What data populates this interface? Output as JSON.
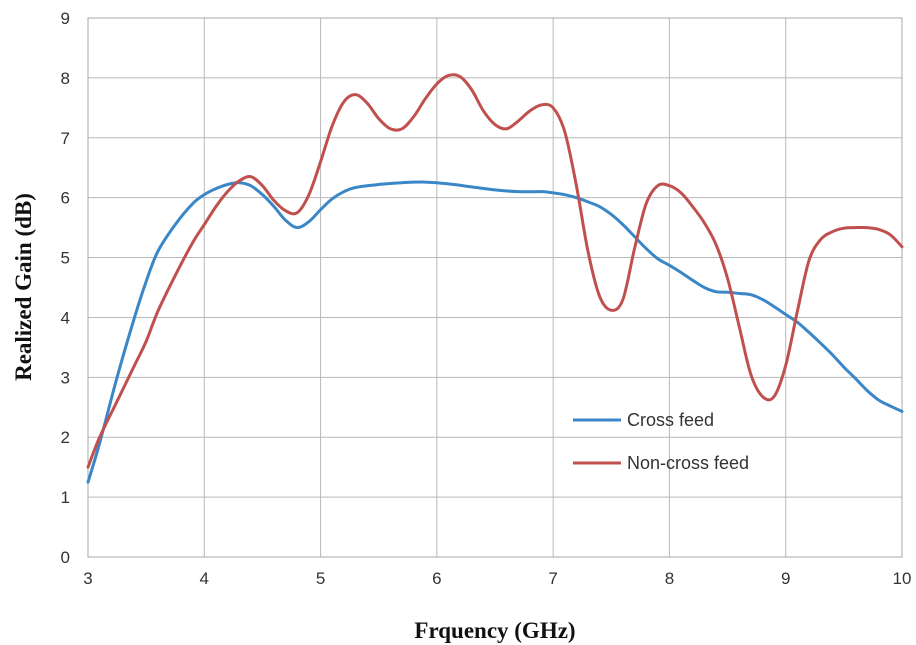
{
  "chart_data": {
    "type": "line",
    "xlabel": "Frquency (GHz)",
    "ylabel": "Realized Gain (dB)",
    "xlim": [
      3,
      10
    ],
    "ylim": [
      0,
      9
    ],
    "xticks": [
      "3",
      "4",
      "5",
      "6",
      "7",
      "8",
      "9",
      "10"
    ],
    "yticks": [
      "0",
      "1",
      "2",
      "3",
      "4",
      "5",
      "6",
      "7",
      "8",
      "9"
    ],
    "grid": true,
    "legend_position": "lower-right",
    "series": [
      {
        "name": "Cross feed",
        "color": "#3a87c8",
        "x": [
          3.0,
          3.1,
          3.25,
          3.4,
          3.5,
          3.6,
          3.75,
          3.9,
          4.0,
          4.1,
          4.2,
          4.3,
          4.4,
          4.5,
          4.6,
          4.7,
          4.8,
          4.9,
          5.0,
          5.1,
          5.2,
          5.3,
          5.5,
          5.7,
          5.9,
          6.1,
          6.3,
          6.5,
          6.7,
          6.9,
          7.0,
          7.1,
          7.2,
          7.3,
          7.4,
          7.5,
          7.6,
          7.7,
          7.8,
          7.9,
          8.0,
          8.1,
          8.2,
          8.3,
          8.4,
          8.5,
          8.6,
          8.7,
          8.8,
          8.9,
          9.0,
          9.1,
          9.2,
          9.3,
          9.4,
          9.5,
          9.6,
          9.7,
          9.8,
          9.9,
          10.0
        ],
        "values": [
          1.25,
          1.9,
          3.0,
          4.0,
          4.6,
          5.1,
          5.55,
          5.9,
          6.05,
          6.15,
          6.22,
          6.25,
          6.2,
          6.05,
          5.85,
          5.62,
          5.5,
          5.6,
          5.8,
          5.98,
          6.1,
          6.17,
          6.22,
          6.25,
          6.26,
          6.23,
          6.18,
          6.13,
          6.1,
          6.1,
          6.08,
          6.05,
          6.0,
          5.93,
          5.85,
          5.72,
          5.55,
          5.35,
          5.15,
          4.98,
          4.87,
          4.75,
          4.62,
          4.5,
          4.43,
          4.42,
          4.4,
          4.38,
          4.3,
          4.18,
          4.05,
          3.92,
          3.75,
          3.57,
          3.38,
          3.17,
          2.98,
          2.78,
          2.62,
          2.52,
          2.43
        ]
      },
      {
        "name": "Non-cross feed",
        "color": "#c0504d",
        "x": [
          3.0,
          3.1,
          3.25,
          3.4,
          3.5,
          3.6,
          3.75,
          3.9,
          4.0,
          4.1,
          4.2,
          4.3,
          4.4,
          4.5,
          4.6,
          4.7,
          4.8,
          4.9,
          5.0,
          5.1,
          5.2,
          5.3,
          5.4,
          5.5,
          5.6,
          5.7,
          5.8,
          5.9,
          6.0,
          6.1,
          6.2,
          6.3,
          6.4,
          6.5,
          6.6,
          6.7,
          6.8,
          6.9,
          7.0,
          7.1,
          7.2,
          7.3,
          7.4,
          7.5,
          7.6,
          7.7,
          7.8,
          7.9,
          8.0,
          8.1,
          8.2,
          8.3,
          8.4,
          8.5,
          8.6,
          8.7,
          8.8,
          8.9,
          9.0,
          9.1,
          9.2,
          9.3,
          9.4,
          9.5,
          9.6,
          9.7,
          9.8,
          9.9,
          10.0
        ],
        "values": [
          1.5,
          2.0,
          2.6,
          3.2,
          3.6,
          4.1,
          4.7,
          5.25,
          5.55,
          5.85,
          6.1,
          6.28,
          6.35,
          6.2,
          5.95,
          5.78,
          5.75,
          6.05,
          6.6,
          7.2,
          7.6,
          7.72,
          7.58,
          7.32,
          7.15,
          7.15,
          7.35,
          7.65,
          7.9,
          8.04,
          8.02,
          7.8,
          7.45,
          7.22,
          7.15,
          7.28,
          7.45,
          7.55,
          7.5,
          7.1,
          6.2,
          5.1,
          4.35,
          4.12,
          4.3,
          5.15,
          5.9,
          6.2,
          6.2,
          6.08,
          5.85,
          5.58,
          5.22,
          4.65,
          3.85,
          3.05,
          2.68,
          2.68,
          3.2,
          4.1,
          4.95,
          5.3,
          5.43,
          5.49,
          5.5,
          5.5,
          5.47,
          5.38,
          5.18
        ]
      }
    ]
  }
}
